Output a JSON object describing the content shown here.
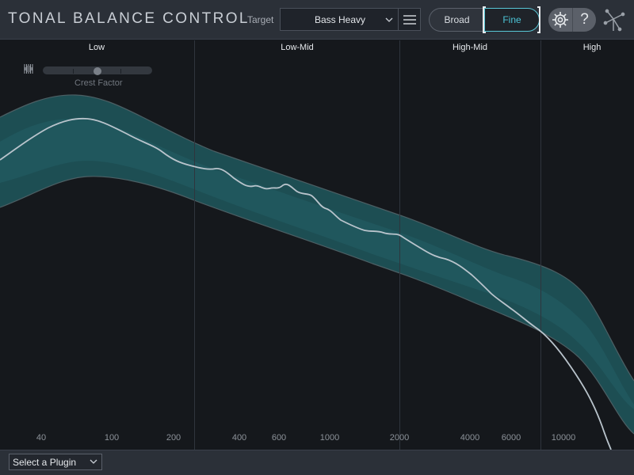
{
  "header": {
    "title": "TONAL BALANCE CONTROL",
    "target_label": "Target",
    "target_value": "Bass Heavy",
    "broad_label": "Broad",
    "fine_label": "Fine",
    "help_label": "?",
    "active_view": "Fine"
  },
  "bands": [
    {
      "label": "Low"
    },
    {
      "label": "Low-Mid"
    },
    {
      "label": "High-Mid"
    },
    {
      "label": "High"
    }
  ],
  "frequency_labels": [
    "40",
    "100",
    "200",
    "400",
    "600",
    "1000",
    "2000",
    "4000",
    "6000",
    "10000"
  ],
  "crest_factor": {
    "label": "Crest Factor",
    "value": 0.5
  },
  "footer": {
    "plugin_select_label": "Select a Plugin"
  },
  "colors": {
    "accent": "#4cc4d6",
    "band_fill": "#1e5a60",
    "curve": "#b9c4cc",
    "background": "#15181c",
    "panel": "#2b3038"
  },
  "icons": {
    "target_dropdown": "chevron-down-icon",
    "target_menu": "hamburger-menu-icon",
    "settings": "gear-icon",
    "help": "question-mark-icon",
    "logo": "izotope-logo-icon",
    "crest_low": "narrow-waveform-icon",
    "crest_high": "wide-waveform-icon",
    "plugin_dropdown": "chevron-down-icon"
  }
}
